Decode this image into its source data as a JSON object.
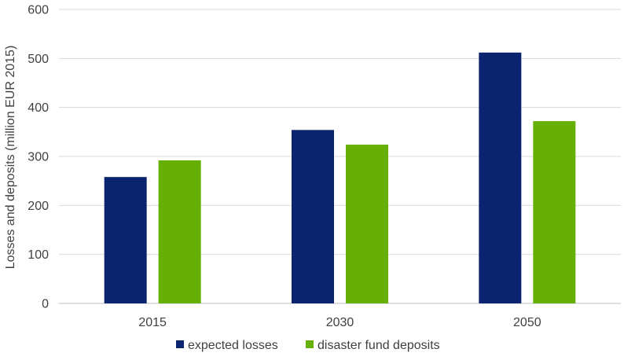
{
  "chart_data": {
    "type": "bar",
    "title": "",
    "xlabel": "",
    "ylabel": "Losses and deposits (million EUR 2015)",
    "categories": [
      "2015",
      "2030",
      "2050"
    ],
    "series": [
      {
        "name": "expected losses",
        "values": [
          258,
          354,
          512
        ],
        "color": "#0b2470"
      },
      {
        "name": "disaster fund deposits",
        "values": [
          292,
          324,
          372
        ],
        "color": "#66b005"
      }
    ],
    "ylim": [
      0,
      600
    ],
    "yticks": [
      0,
      100,
      200,
      300,
      400,
      500,
      600
    ],
    "grid": true,
    "legend_position": "bottom"
  }
}
